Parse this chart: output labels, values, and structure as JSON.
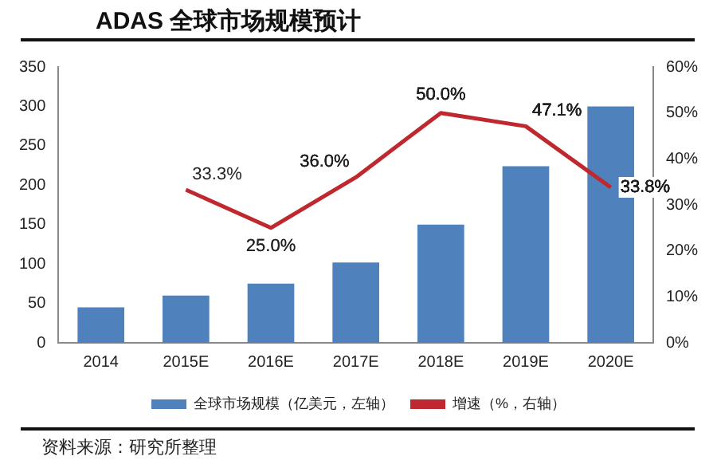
{
  "chart_data": {
    "type": "bar",
    "title": "ADAS 全球市场规模预计",
    "categories": [
      "2014",
      "2015E",
      "2016E",
      "2017E",
      "2018E",
      "2019E",
      "2020E"
    ],
    "series": [
      {
        "name": "全球市场规模（亿美元，左轴）",
        "color": "#4f81bd",
        "values": [
          45,
          60,
          75,
          102,
          150,
          224,
          300
        ]
      },
      {
        "name": "增速（%，右轴）",
        "type": "line",
        "axis": "y2",
        "color": "#c0282f",
        "values": [
          null,
          33.3,
          25.0,
          36.0,
          50.0,
          47.1,
          33.8
        ],
        "value_labels": [
          null,
          "33.3%",
          "25.0%",
          "36.0%",
          "50.0%",
          "47.1%",
          "33.8%"
        ]
      }
    ],
    "ylim": [
      0,
      350
    ],
    "yticks": [
      0,
      50,
      100,
      150,
      200,
      250,
      300,
      350
    ],
    "y2lim": [
      0,
      60
    ],
    "y2ticks": [
      {
        "value": 0,
        "label": "0%"
      },
      {
        "value": 10,
        "label": "10%"
      },
      {
        "value": 20,
        "label": "20%"
      },
      {
        "value": 30,
        "label": "30%"
      },
      {
        "value": 40,
        "label": "40%"
      },
      {
        "value": 50,
        "label": "50%"
      },
      {
        "value": 60,
        "label": "60%"
      }
    ],
    "grid": false,
    "legend": "bottom",
    "annotations": [
      "资料来源：研究所整理"
    ]
  }
}
